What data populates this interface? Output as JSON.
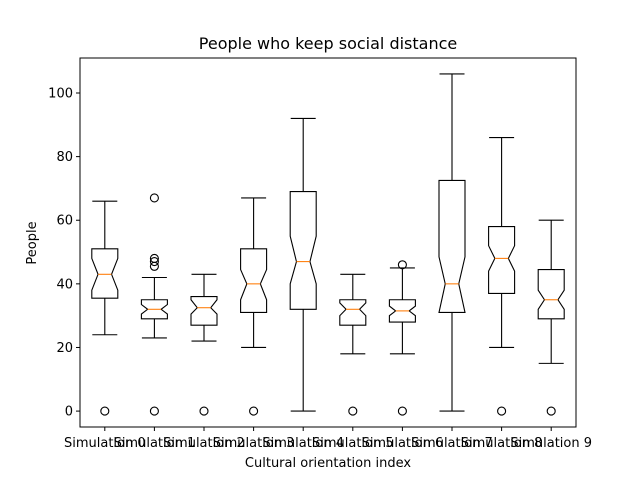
{
  "chart_data": {
    "type": "boxplot",
    "title": "People who keep social distance",
    "xlabel": "Cultural orientation index",
    "ylabel": "People",
    "ylim": [
      -5,
      111
    ],
    "yticks": [
      0,
      20,
      40,
      60,
      80,
      100
    ],
    "notched": true,
    "grid": false,
    "colors": {
      "box": "#000000",
      "median": "#ff7f0e",
      "background": "#ffffff"
    },
    "categories": [
      "Simulation 0",
      "Simulation 1",
      "Simulation 2",
      "Simulation 3",
      "Simulation 4",
      "Simulation 5",
      "Simulation 6",
      "Simulation 7",
      "Simulation 8",
      "Simulation 9"
    ],
    "boxes": [
      {
        "q1": 35.5,
        "median": 43,
        "q3": 51,
        "whislo": 24,
        "whishi": 66,
        "notch_lo": 38,
        "notch_hi": 48,
        "fliers": [
          0
        ]
      },
      {
        "q1": 29,
        "median": 32,
        "q3": 35,
        "whislo": 23,
        "whishi": 42,
        "notch_lo": 30.5,
        "notch_hi": 33.5,
        "fliers": [
          0,
          45.5,
          47,
          48,
          67
        ]
      },
      {
        "q1": 27,
        "median": 32.5,
        "q3": 36,
        "whislo": 22,
        "whishi": 43,
        "notch_lo": 30.5,
        "notch_hi": 35,
        "fliers": [
          0
        ]
      },
      {
        "q1": 31,
        "median": 40,
        "q3": 51,
        "whislo": 20,
        "whishi": 67,
        "notch_lo": 35,
        "notch_hi": 44.5,
        "fliers": [
          0
        ]
      },
      {
        "q1": 32,
        "median": 47,
        "q3": 69,
        "whislo": 0,
        "whishi": 92,
        "notch_lo": 40,
        "notch_hi": 55,
        "fliers": []
      },
      {
        "q1": 27,
        "median": 32,
        "q3": 35,
        "whislo": 18,
        "whishi": 43,
        "notch_lo": 30,
        "notch_hi": 34,
        "fliers": [
          0
        ]
      },
      {
        "q1": 28,
        "median": 31.5,
        "q3": 35,
        "whislo": 18,
        "whishi": 45,
        "notch_lo": 30,
        "notch_hi": 33,
        "fliers": [
          0,
          46
        ]
      },
      {
        "q1": 31,
        "median": 40,
        "q3": 72.5,
        "whislo": 0,
        "whishi": 106,
        "notch_lo": 31,
        "notch_hi": 48.5,
        "fliers": []
      },
      {
        "q1": 37,
        "median": 48,
        "q3": 58,
        "whislo": 20,
        "whishi": 86,
        "notch_lo": 44,
        "notch_hi": 52,
        "fliers": [
          0
        ]
      },
      {
        "q1": 29,
        "median": 35,
        "q3": 44.5,
        "whislo": 15,
        "whishi": 60,
        "notch_lo": 32,
        "notch_hi": 38,
        "fliers": [
          0
        ]
      }
    ]
  }
}
